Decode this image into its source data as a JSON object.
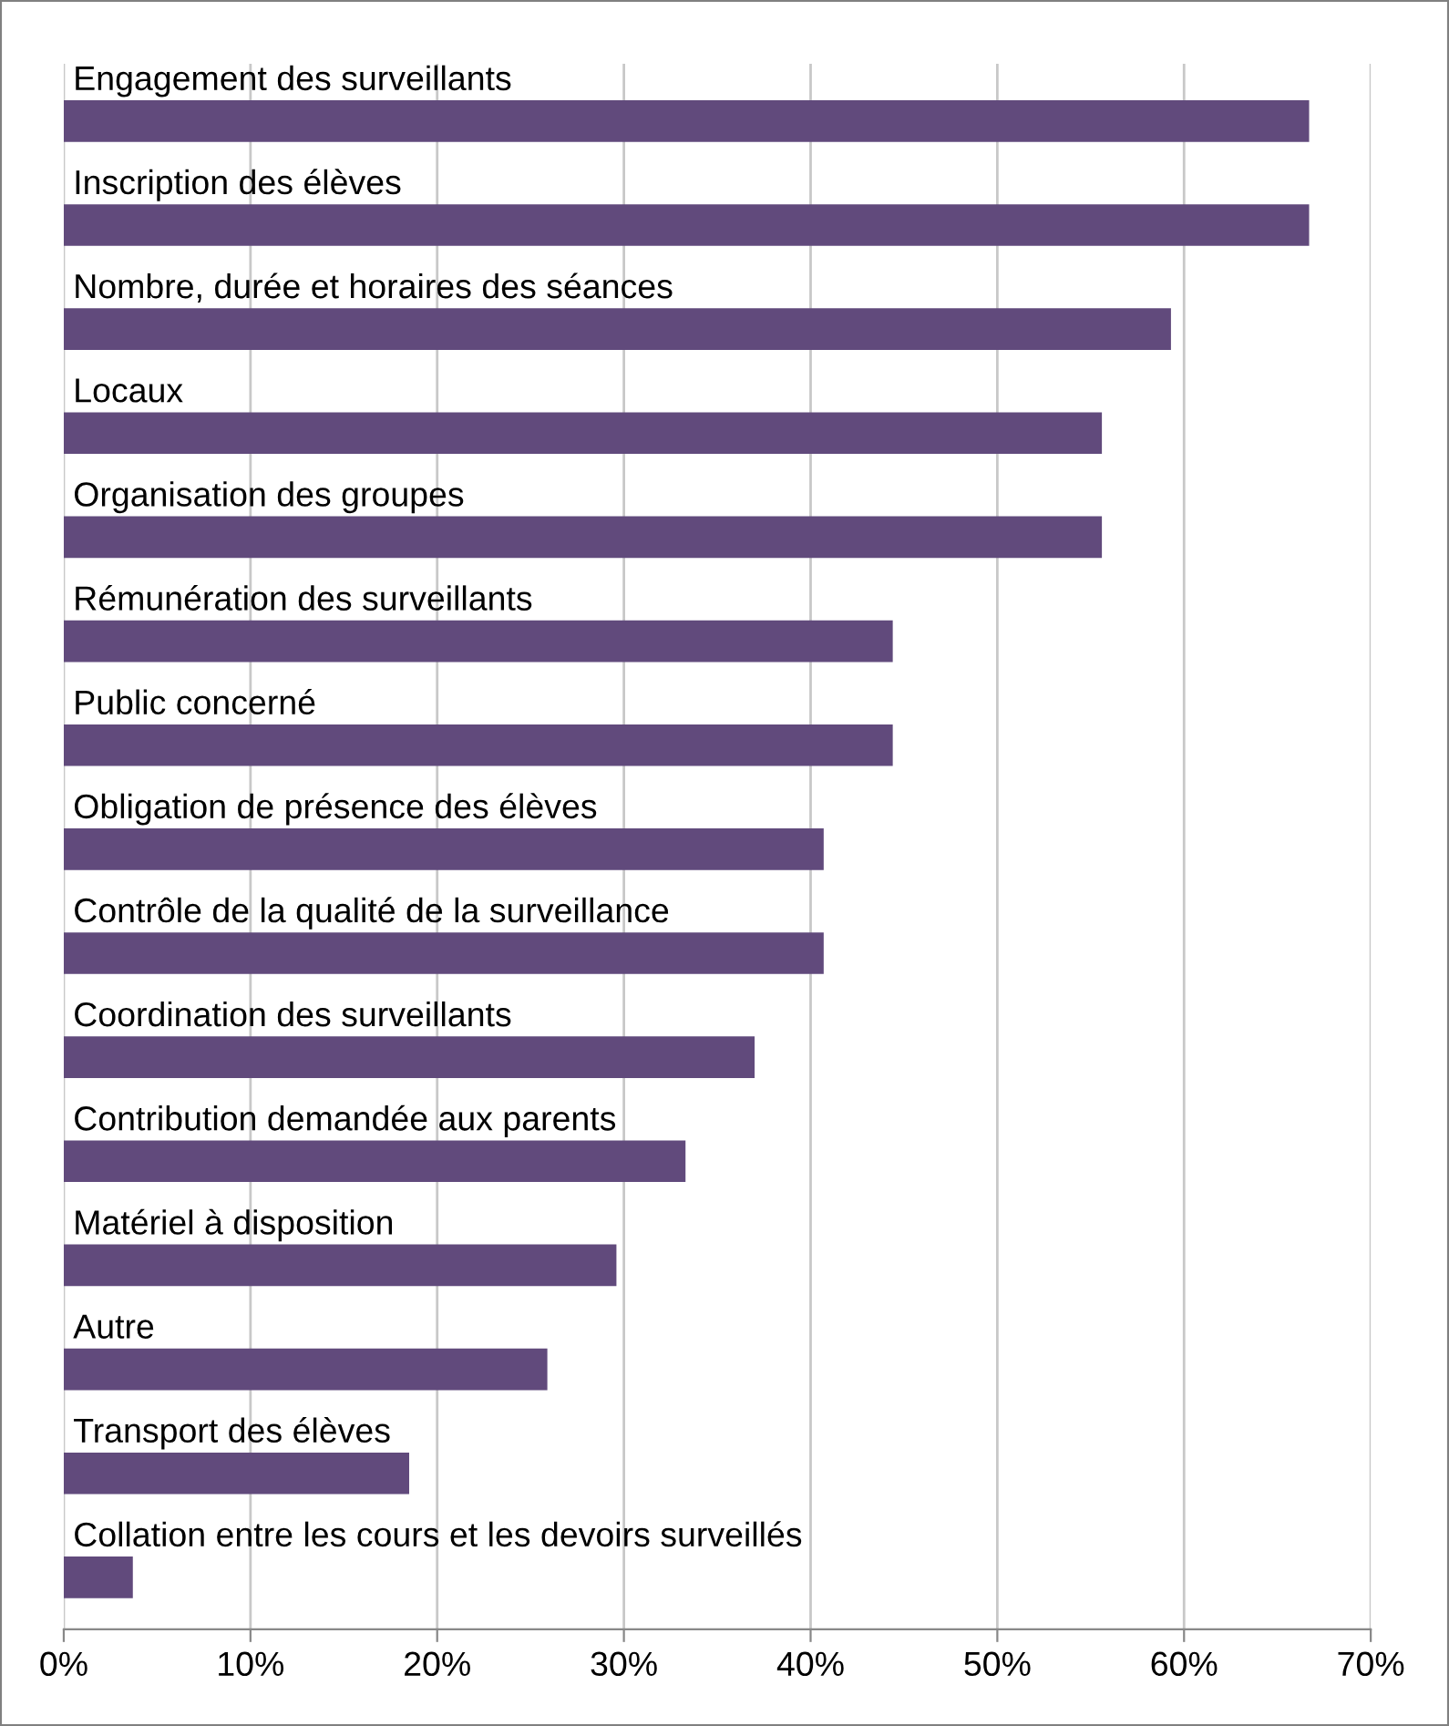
{
  "chart_data": {
    "type": "bar",
    "orientation": "horizontal",
    "categories": [
      "Engagement des surveillants",
      "Inscription des élèves",
      "Nombre, durée et horaires des séances",
      "Locaux",
      "Organisation des groupes",
      "Rémunération des surveillants",
      "Public concerné",
      "Obligation de présence des élèves",
      "Contrôle de la qualité de la surveillance",
      "Coordination des surveillants",
      "Contribution demandée aux parents",
      "Matériel à disposition",
      "Autre",
      "Transport des élèves",
      "Collation entre les cours et les devoirs surveillés"
    ],
    "values": [
      66.7,
      66.7,
      59.3,
      55.6,
      55.6,
      44.4,
      44.4,
      40.7,
      40.7,
      37.0,
      33.3,
      29.6,
      25.9,
      18.5,
      3.7
    ],
    "color": "#614a7c",
    "xlim": [
      0,
      70
    ],
    "xticks": [
      {
        "value": 0,
        "label": "0%"
      },
      {
        "value": 10,
        "label": "10%"
      },
      {
        "value": 20,
        "label": "20%"
      },
      {
        "value": 30,
        "label": "30%"
      },
      {
        "value": 40,
        "label": "40%"
      },
      {
        "value": 50,
        "label": "50%"
      },
      {
        "value": 60,
        "label": "60%"
      },
      {
        "value": 70,
        "label": "70%"
      }
    ],
    "grid": "x",
    "legend": false
  }
}
